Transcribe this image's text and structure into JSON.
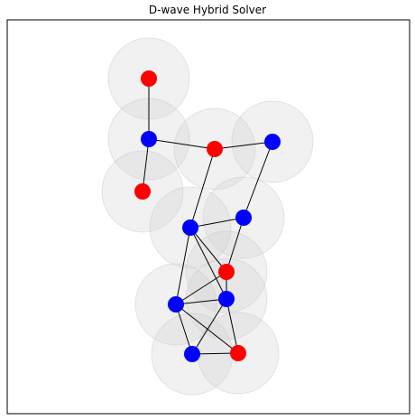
{
  "title": "D-wave Hybrid Solver",
  "colors": {
    "set_a": "#0000ff",
    "set_b": "#ff0000",
    "halo": "#d0d0d0",
    "edge": "#000000"
  },
  "nodes": [
    {
      "id": "n1",
      "color": "set_b"
    },
    {
      "id": "n2",
      "color": "set_a"
    },
    {
      "id": "n3",
      "color": "set_b"
    },
    {
      "id": "n4",
      "color": "set_a"
    },
    {
      "id": "n5",
      "color": "set_b"
    },
    {
      "id": "n6",
      "color": "set_a"
    },
    {
      "id": "n7",
      "color": "set_a"
    },
    {
      "id": "n8",
      "color": "set_b"
    },
    {
      "id": "n9",
      "color": "set_a"
    },
    {
      "id": "n10",
      "color": "set_a"
    },
    {
      "id": "n11",
      "color": "set_a"
    },
    {
      "id": "n12",
      "color": "set_b"
    }
  ],
  "edges": [
    [
      "n1",
      "n2"
    ],
    [
      "n2",
      "n3"
    ],
    [
      "n3",
      "n4"
    ],
    [
      "n2",
      "n5"
    ],
    [
      "n3",
      "n7"
    ],
    [
      "n4",
      "n6"
    ],
    [
      "n6",
      "n7"
    ],
    [
      "n6",
      "n8"
    ],
    [
      "n7",
      "n8"
    ],
    [
      "n7",
      "n9"
    ],
    [
      "n7",
      "n10"
    ],
    [
      "n8",
      "n10"
    ],
    [
      "n8",
      "n9"
    ],
    [
      "n9",
      "n10"
    ],
    [
      "n9",
      "n11"
    ],
    [
      "n9",
      "n12"
    ],
    [
      "n10",
      "n11"
    ],
    [
      "n10",
      "n12"
    ],
    [
      "n11",
      "n12"
    ]
  ]
}
